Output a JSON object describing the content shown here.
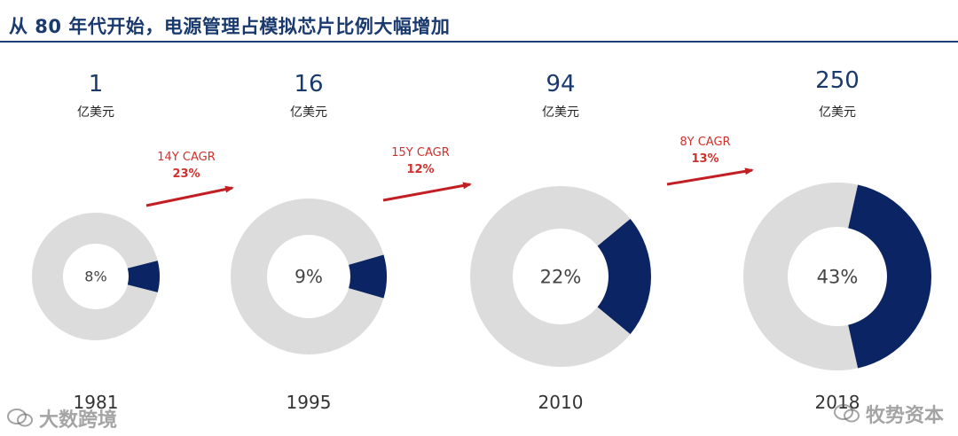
{
  "title": "从 80 年代开始，电源管理占模拟芯片比例大幅增加",
  "chart_data": {
    "type": "pie",
    "variant": "donut",
    "colors": {
      "share": "#0b2463",
      "rest": "#dcdcdc",
      "arrow": "#c21f24",
      "cagr_text": "#d0312d",
      "value_text": "#1a3a6e"
    },
    "market_unit": "亿美元",
    "items": [
      {
        "year": "1981",
        "market_value": "1",
        "share": 8,
        "share_label": "8%"
      },
      {
        "year": "1995",
        "market_value": "16",
        "share": 9,
        "share_label": "9%"
      },
      {
        "year": "2010",
        "market_value": "94",
        "share": 22,
        "share_label": "22%"
      },
      {
        "year": "2018",
        "market_value": "250",
        "share": 43,
        "share_label": "43%"
      }
    ],
    "cagr": [
      {
        "label": "14Y CAGR",
        "value": "23%"
      },
      {
        "label": "15Y CAGR",
        "value": "12%"
      },
      {
        "label": "8Y CAGR",
        "value": "13%"
      }
    ]
  },
  "watermarks": {
    "left": "大数跨境",
    "right": "牧势资本",
    "left_icon": "wechat-icon",
    "right_icon": "wechat-icon"
  }
}
